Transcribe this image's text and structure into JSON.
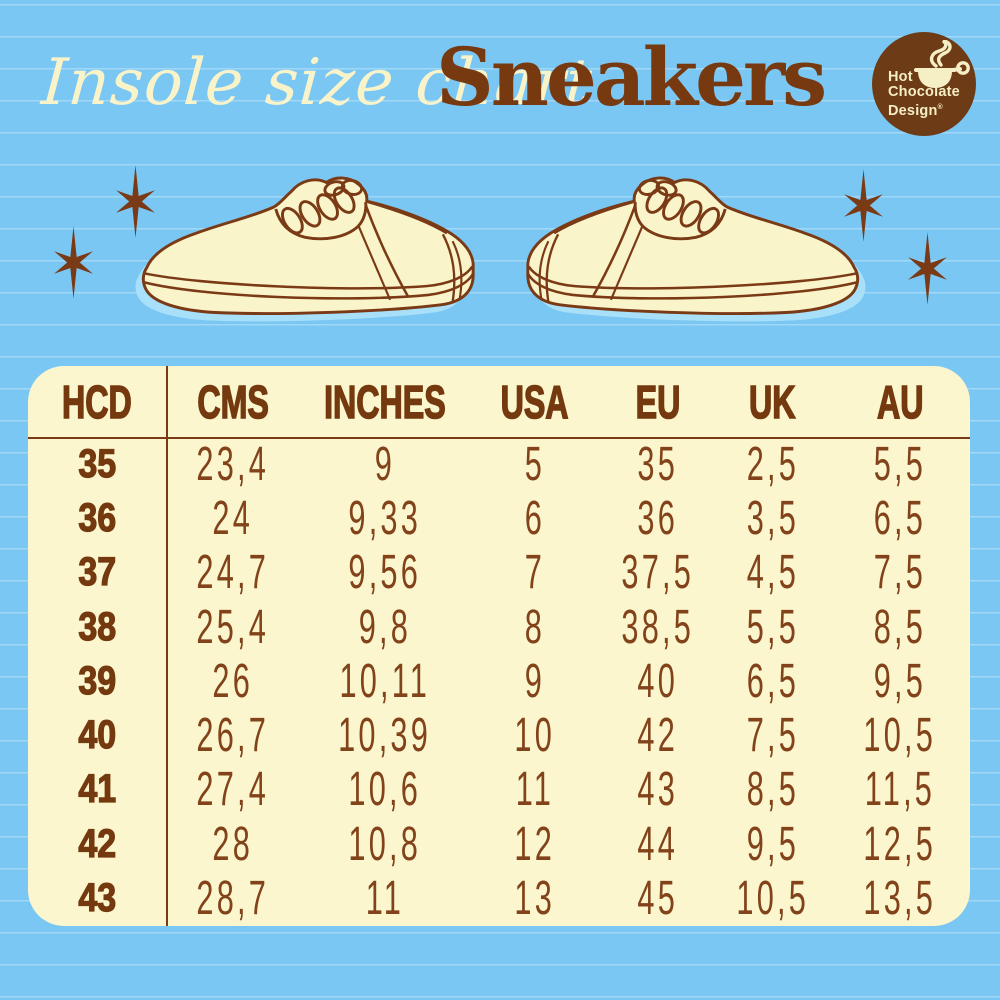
{
  "header": {
    "script_title": "Insole size chart",
    "main_title": "Sneakers"
  },
  "logo": {
    "line1": "Hot",
    "line2": "Chocolate",
    "line3": "Design",
    "registered_mark": "®"
  },
  "decor": {
    "left_shoe": "sneaker-facing-left",
    "right_shoe": "sneaker-facing-right",
    "stars": 4
  },
  "table": {
    "columns": [
      "HCD",
      "CMS",
      "INCHES",
      "USA",
      "EU",
      "UK",
      "AU"
    ],
    "rows": [
      [
        "35",
        "23,4",
        "9",
        "5",
        "35",
        "2,5",
        "5,5"
      ],
      [
        "36",
        "24",
        "9,33",
        "6",
        "36",
        "3,5",
        "6,5"
      ],
      [
        "37",
        "24,7",
        "9,56",
        "7",
        "37,5",
        "4,5",
        "7,5"
      ],
      [
        "38",
        "25,4",
        "9,8",
        "8",
        "38,5",
        "5,5",
        "8,5"
      ],
      [
        "39",
        "26",
        "10,11",
        "9",
        "40",
        "6,5",
        "9,5"
      ],
      [
        "40",
        "26,7",
        "10,39",
        "10",
        "42",
        "7,5",
        "10,5"
      ],
      [
        "41",
        "27,4",
        "10,6",
        "11",
        "43",
        "8,5",
        "11,5"
      ],
      [
        "42",
        "28",
        "10,8",
        "12",
        "44",
        "9,5",
        "12,5"
      ],
      [
        "43",
        "28,7",
        "11",
        "13",
        "45",
        "10,5",
        "13,5"
      ]
    ]
  },
  "colors": {
    "background_blue": "#7AC7F3",
    "ruled_line": "#A9DCF9",
    "panel_cream": "#FBF6CE",
    "brown": "#7B3A16",
    "title_cream": "#F9F3CA",
    "shoe_shadow_blue": "#A9E0F9"
  }
}
